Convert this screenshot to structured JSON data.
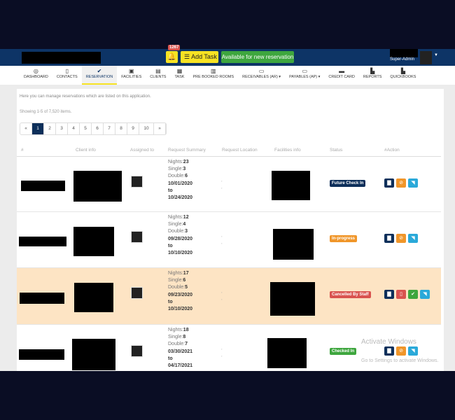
{
  "header": {
    "notification_count": "1267",
    "add_task": "Add Task",
    "available": "Available for new reservation",
    "user": "Super-Admin"
  },
  "nav": [
    {
      "label": "DASHBOARD",
      "icon": "dashboard-icon",
      "glyph": "◎"
    },
    {
      "label": "CONTACTS",
      "icon": "contacts-icon",
      "glyph": "▯"
    },
    {
      "label": "RESERVATION",
      "icon": "check-icon",
      "glyph": "✔"
    },
    {
      "label": "FACILITIES",
      "icon": "briefcase-icon",
      "glyph": "▣"
    },
    {
      "label": "CLIENTS",
      "icon": "building-icon",
      "glyph": "▤"
    },
    {
      "label": "TASK",
      "icon": "task-icon",
      "glyph": "▦"
    },
    {
      "label": "PRE BOOKED ROOMS",
      "icon": "grid-icon",
      "glyph": "▥"
    },
    {
      "label": "RECEIVABLES (AR) ▾",
      "icon": "money-icon",
      "glyph": "▭"
    },
    {
      "label": "PAYABLES (AP) ▾",
      "icon": "money-icon",
      "glyph": "▭"
    },
    {
      "label": "CREDIT CARD",
      "icon": "credit-card-icon",
      "glyph": "▬"
    },
    {
      "label": "REPORTS",
      "icon": "chart-icon",
      "glyph": "▙"
    },
    {
      "label": "QUICKBOOKS",
      "icon": "chart-icon",
      "glyph": "▙"
    }
  ],
  "intro": "Here you can manage reservations which are listed on this application.",
  "showing": "Showing 1-5 of 7,520 items.",
  "pagination": [
    "«",
    "1",
    "2",
    "3",
    "4",
    "5",
    "6",
    "7",
    "8",
    "9",
    "10",
    "»"
  ],
  "columns": [
    "#",
    "Client info",
    "Assigned to",
    "Request Summary",
    "Request Location",
    "Facilities info",
    "Status",
    "#Action"
  ],
  "labels": {
    "nights": "Nights:",
    "single": "Single:",
    "double": "Double:",
    "to": "to"
  },
  "rows": [
    {
      "nights": "23",
      "single": "3",
      "double": "6",
      "from": "10/01/2020",
      "to": "10/24/2020",
      "status": "Future Check In",
      "status_color": "#0d2f5a",
      "actions": [
        "folder",
        "ban",
        "rss"
      ]
    },
    {
      "nights": "12",
      "single": "4",
      "double": "3",
      "from": "09/28/2020",
      "to": "10/10/2020",
      "status": "In-progress",
      "status_color": "#f0962a",
      "actions": [
        "folder",
        "ban",
        "rss"
      ]
    },
    {
      "nights": "17",
      "single": "6",
      "double": "5",
      "from": "09/23/2020",
      "to": "10/10/2020",
      "status": "Cancelled By Staff",
      "status_color": "#d9534f",
      "actions": [
        "folder",
        "trash",
        "check",
        "rss"
      ]
    },
    {
      "nights": "18",
      "single": "8",
      "double": "7",
      "from": "03/30/2021",
      "to": "04/17/2021",
      "status": "Checked In",
      "status_color": "#3ea63e",
      "actions": [
        "folder",
        "ban",
        "rss"
      ]
    }
  ],
  "watermark": {
    "title": "Activate Windows",
    "sub": "Go to Settings to activate Windows."
  }
}
